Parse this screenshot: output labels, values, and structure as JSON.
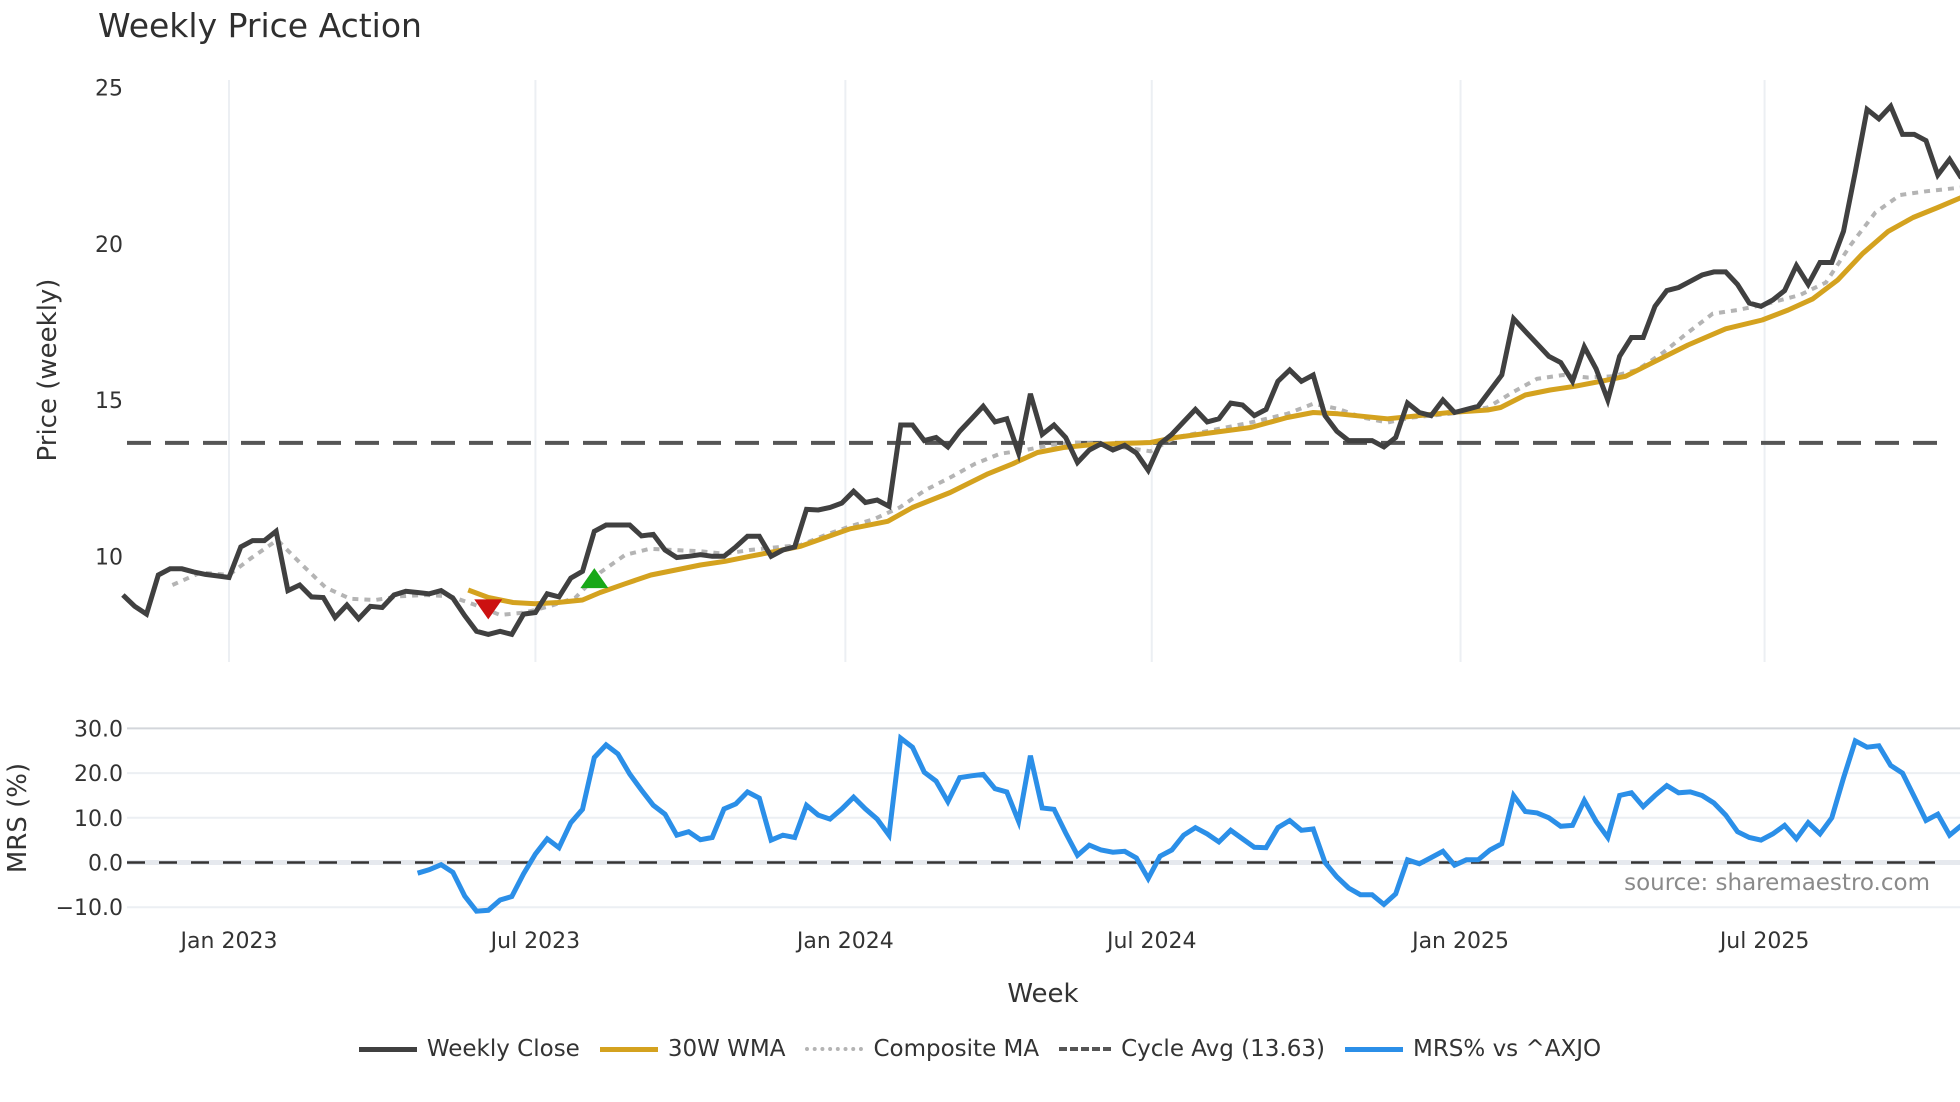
{
  "title": "Weekly Price Action",
  "source": "source: sharemaestro.com",
  "legend": [
    {
      "key": "close",
      "label": "Weekly Close",
      "color": "#404040",
      "style": "solid"
    },
    {
      "key": "wma",
      "label": "30W WMA",
      "color": "#d4a21f",
      "style": "solid"
    },
    {
      "key": "comp",
      "label": "Composite MA",
      "color": "#b4b4b4",
      "style": "dotted"
    },
    {
      "key": "cycle",
      "label": "Cycle Avg (13.63)",
      "color": "#555555",
      "style": "dashed"
    },
    {
      "key": "mrs",
      "label": "MRS% vs ^AXJO",
      "color": "#2b8fe8",
      "style": "solid"
    }
  ],
  "chart_data": [
    {
      "type": "line",
      "title": "Weekly Price Action",
      "xlabel": "Week",
      "ylabel": "Price (weekly)",
      "ylim": [
        6.8,
        25.6
      ],
      "yticks": [
        10,
        15,
        20,
        25
      ],
      "xticks": [
        {
          "label": "Jan 2023",
          "week": 0
        },
        {
          "label": "Jul 2023",
          "week": 26
        },
        {
          "label": "Jan 2024",
          "week": 52.3
        },
        {
          "label": "Jul 2024",
          "week": 78.3
        },
        {
          "label": "Jan 2025",
          "week": 104.5
        },
        {
          "label": "Jul 2025",
          "week": 130.3
        }
      ],
      "week_axis": "week index 0 = first week of Jan 2023; x spans week -9 to 147",
      "grid": "vertical only",
      "cycle_avg": 13.63,
      "series": [
        {
          "name": "Weekly Close",
          "start_week": -9,
          "values": [
            8.76,
            8.4,
            8.15,
            9.4,
            9.6,
            9.6,
            9.5,
            9.42,
            9.37,
            9.32,
            10.3,
            10.5,
            10.5,
            10.8,
            8.9,
            9.08,
            8.7,
            8.68,
            8.04,
            8.44,
            8.0,
            8.4,
            8.36,
            8.76,
            8.88,
            8.84,
            8.8,
            8.9,
            8.66,
            8.1,
            7.6,
            7.5,
            7.6,
            7.5,
            8.15,
            8.2,
            8.8,
            8.7,
            9.3,
            9.52,
            10.8,
            11.0,
            11.0,
            11.0,
            10.65,
            10.7,
            10.2,
            9.96,
            10.0,
            10.05,
            10.0,
            10.0,
            10.3,
            10.64,
            10.64,
            10.0,
            10.2,
            10.3,
            11.5,
            11.48,
            11.56,
            11.7,
            12.08,
            11.72,
            11.8,
            11.6,
            14.2,
            14.2,
            13.7,
            13.8,
            13.5,
            14.0,
            14.4,
            14.8,
            14.3,
            14.4,
            13.3,
            15.2,
            13.9,
            14.2,
            13.8,
            13.0,
            13.4,
            13.6,
            13.4,
            13.55,
            13.3,
            12.75,
            13.6,
            13.9,
            14.3,
            14.7,
            14.3,
            14.4,
            14.9,
            14.84,
            14.5,
            14.7,
            15.6,
            15.96,
            15.6,
            15.8,
            14.5,
            14.0,
            13.7,
            13.7,
            13.7,
            13.5,
            13.8,
            14.9,
            14.6,
            14.5,
            15.0,
            14.6,
            14.7,
            14.8,
            15.3,
            15.8,
            17.6,
            17.2,
            16.8,
            16.4,
            16.2,
            15.6,
            16.7,
            16.0,
            15.0,
            16.4,
            17.0,
            17.0,
            18.0,
            18.5,
            18.6,
            18.8,
            19.0,
            19.1,
            19.1,
            18.7,
            18.1,
            18.0,
            18.2,
            18.5,
            19.3,
            18.7,
            19.4,
            19.4,
            20.4,
            22.3,
            24.3,
            24.0,
            24.4,
            23.5,
            23.5,
            23.3,
            22.2,
            22.7,
            22.1
          ]
        },
        {
          "name": "30W WMA",
          "points": [
            [
              20.3,
              8.92
            ],
            [
              22,
              8.68
            ],
            [
              24.1,
              8.52
            ],
            [
              26,
              8.48
            ],
            [
              27.9,
              8.52
            ],
            [
              30,
              8.6
            ],
            [
              31.5,
              8.84
            ],
            [
              33.6,
              9.12
            ],
            [
              35.8,
              9.4
            ],
            [
              37.9,
              9.56
            ],
            [
              40,
              9.72
            ],
            [
              42.1,
              9.84
            ],
            [
              44.2,
              10.0
            ],
            [
              46.4,
              10.16
            ],
            [
              48.5,
              10.32
            ],
            [
              50.6,
              10.6
            ],
            [
              52.7,
              10.88
            ],
            [
              55.9,
              11.12
            ],
            [
              58,
              11.56
            ],
            [
              61.2,
              12.04
            ],
            [
              64.4,
              12.64
            ],
            [
              66.5,
              12.96
            ],
            [
              68.6,
              13.32
            ],
            [
              70.8,
              13.48
            ],
            [
              72.9,
              13.56
            ],
            [
              75,
              13.6
            ],
            [
              78.2,
              13.64
            ],
            [
              80.3,
              13.8
            ],
            [
              83.5,
              13.96
            ],
            [
              86.7,
              14.12
            ],
            [
              89.8,
              14.44
            ],
            [
              92,
              14.6
            ],
            [
              94.1,
              14.56
            ],
            [
              96.2,
              14.48
            ],
            [
              98.3,
              14.4
            ],
            [
              100.4,
              14.48
            ],
            [
              103.6,
              14.6
            ],
            [
              106.8,
              14.68
            ],
            [
              107.9,
              14.76
            ],
            [
              110,
              15.16
            ],
            [
              112.1,
              15.32
            ],
            [
              114.2,
              15.44
            ],
            [
              116.4,
              15.6
            ],
            [
              118.5,
              15.76
            ],
            [
              120.6,
              16.16
            ],
            [
              123.8,
              16.76
            ],
            [
              127,
              17.28
            ],
            [
              130.1,
              17.56
            ],
            [
              132.3,
              17.88
            ],
            [
              134.4,
              18.24
            ],
            [
              136.5,
              18.84
            ],
            [
              138.6,
              19.68
            ],
            [
              140.8,
              20.4
            ],
            [
              142.9,
              20.84
            ],
            [
              145,
              21.16
            ],
            [
              147,
              21.48
            ]
          ]
        },
        {
          "name": "Composite MA",
          "points": [
            [
              -4.8,
              9.08
            ],
            [
              -2.4,
              9.48
            ],
            [
              0,
              9.4
            ],
            [
              1.8,
              9.92
            ],
            [
              4.1,
              10.52
            ],
            [
              6,
              9.8
            ],
            [
              8.2,
              9.0
            ],
            [
              10.3,
              8.64
            ],
            [
              12.4,
              8.6
            ],
            [
              14.5,
              8.72
            ],
            [
              16.7,
              8.76
            ],
            [
              18.8,
              8.72
            ],
            [
              20.9,
              8.44
            ],
            [
              23,
              8.12
            ],
            [
              25.1,
              8.2
            ],
            [
              27.2,
              8.4
            ],
            [
              29.4,
              8.68
            ],
            [
              31.5,
              9.48
            ],
            [
              33.6,
              10.04
            ],
            [
              35.7,
              10.24
            ],
            [
              37.8,
              10.2
            ],
            [
              40,
              10.16
            ],
            [
              42.1,
              10.08
            ],
            [
              44.2,
              10.2
            ],
            [
              46.3,
              10.28
            ],
            [
              48.5,
              10.36
            ],
            [
              50.6,
              10.68
            ],
            [
              52.7,
              10.96
            ],
            [
              54.8,
              11.2
            ],
            [
              56.9,
              11.56
            ],
            [
              59.1,
              12.12
            ],
            [
              61.2,
              12.52
            ],
            [
              63.3,
              12.96
            ],
            [
              65.4,
              13.28
            ],
            [
              67.6,
              13.4
            ],
            [
              69.7,
              13.56
            ],
            [
              71.8,
              13.64
            ],
            [
              73.9,
              13.6
            ],
            [
              76,
              13.48
            ],
            [
              78.2,
              13.36
            ],
            [
              80.3,
              13.8
            ],
            [
              83.5,
              14.04
            ],
            [
              86.7,
              14.28
            ],
            [
              89.8,
              14.56
            ],
            [
              92,
              14.88
            ],
            [
              94.1,
              14.72
            ],
            [
              96.2,
              14.44
            ],
            [
              98.3,
              14.28
            ],
            [
              100.4,
              14.44
            ],
            [
              103.6,
              14.56
            ],
            [
              106.8,
              14.76
            ],
            [
              108.9,
              15.24
            ],
            [
              111,
              15.68
            ],
            [
              113.2,
              15.8
            ],
            [
              115.3,
              15.72
            ],
            [
              117.4,
              15.76
            ],
            [
              119.5,
              15.96
            ],
            [
              121.7,
              16.52
            ],
            [
              123.8,
              17.16
            ],
            [
              125.9,
              17.76
            ],
            [
              128,
              17.88
            ],
            [
              130.1,
              18.04
            ],
            [
              133.3,
              18.36
            ],
            [
              135.5,
              18.76
            ],
            [
              137.6,
              19.96
            ],
            [
              139.7,
              21.0
            ],
            [
              141.8,
              21.56
            ],
            [
              144,
              21.68
            ],
            [
              147,
              21.8
            ]
          ]
        },
        {
          "name": "Cycle Avg (13.63)",
          "value": 13.63
        }
      ],
      "signals": [
        {
          "type": "sell",
          "marker": "down-triangle",
          "color": "#cc1111",
          "week": 22,
          "value": 8.3
        },
        {
          "type": "buy",
          "marker": "up-triangle",
          "color": "#18a818",
          "week": 31,
          "value": 9.3
        }
      ]
    },
    {
      "type": "line",
      "title": "",
      "xlabel": "Week",
      "ylabel": "MRS (%)",
      "ylim": [
        -13,
        30
      ],
      "yticks": [
        -10.0,
        0.0,
        10.0,
        20.0,
        30.0
      ],
      "ytick_labels": [
        "−10.0",
        "0.0",
        "10.0",
        "20.0",
        "30.0"
      ],
      "zero_line": "dashed",
      "series": [
        {
          "name": "MRS% vs ^AXJO",
          "start_week": 16,
          "values": [
            -2.4,
            -1.6,
            -0.5,
            -2.2,
            -7.5,
            -10.9,
            -10.7,
            -8.4,
            -7.6,
            -2.5,
            1.9,
            5.3,
            3.3,
            8.9,
            11.9,
            23.5,
            26.3,
            24.3,
            19.8,
            16.2,
            12.8,
            10.8,
            6.1,
            6.9,
            5.1,
            5.6,
            12.0,
            13.1,
            15.8,
            14.4,
            5.0,
            6.1,
            5.6,
            12.8,
            10.6,
            9.7,
            12.0,
            14.6,
            12.0,
            9.7,
            6.1,
            27.8,
            25.8,
            20.2,
            18.2,
            13.6,
            19.0,
            19.4,
            19.7,
            16.5,
            15.8,
            9.2,
            23.9,
            12.2,
            11.9,
            6.6,
            1.6,
            3.9,
            2.8,
            2.3,
            2.5,
            1.0,
            -3.6,
            1.4,
            2.8,
            6.1,
            7.8,
            6.4,
            4.6,
            7.2,
            5.3,
            3.4,
            3.3,
            7.8,
            9.4,
            7.2,
            7.5,
            0.0,
            -3.2,
            -5.7,
            -7.2,
            -7.2,
            -9.4,
            -7.0,
            0.6,
            -0.3,
            1.1,
            2.5,
            -0.6,
            0.6,
            0.6,
            2.8,
            4.2,
            15.0,
            11.4,
            11.1,
            10.0,
            8.1,
            8.3,
            13.9,
            9.2,
            5.6,
            15.0,
            15.6,
            12.5,
            15.0,
            17.2,
            15.6,
            15.8,
            15.0,
            13.3,
            10.6,
            6.9,
            5.6,
            5.0,
            6.4,
            8.3,
            5.3,
            8.9,
            6.4,
            10.0,
            18.9,
            27.2,
            25.8,
            26.1,
            21.7,
            20.0,
            14.7,
            9.4,
            10.8,
            6.1,
            8.3
          ]
        }
      ]
    }
  ]
}
